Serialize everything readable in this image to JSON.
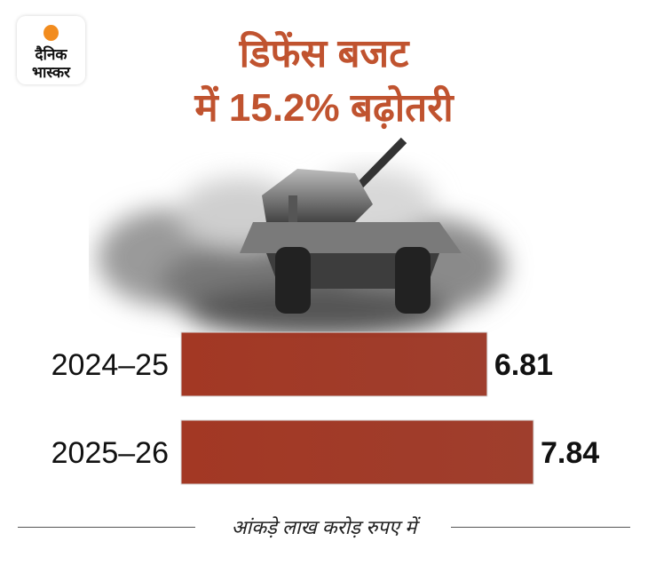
{
  "logo": {
    "line1": "दैनिक",
    "line2": "भास्कर",
    "dot_color": "#f28c1e"
  },
  "title": {
    "line1": "डिफेंस बजट",
    "line2": "में 15.2% बढ़ोतरी",
    "color": "#c0532f"
  },
  "illustration": {
    "subject": "tank-in-smoke",
    "style": "grayscale"
  },
  "chart_data": {
    "type": "bar",
    "orientation": "horizontal",
    "categories": [
      "2024–25",
      "2025–26"
    ],
    "values": [
      6.81,
      7.84
    ],
    "value_labels": [
      "6.81",
      "7.84"
    ],
    "bar_color": "#9a3422",
    "xlim": [
      0,
      7.84
    ],
    "grid": false,
    "note": "आंकड़े लाख करोड़ रुपए में"
  }
}
